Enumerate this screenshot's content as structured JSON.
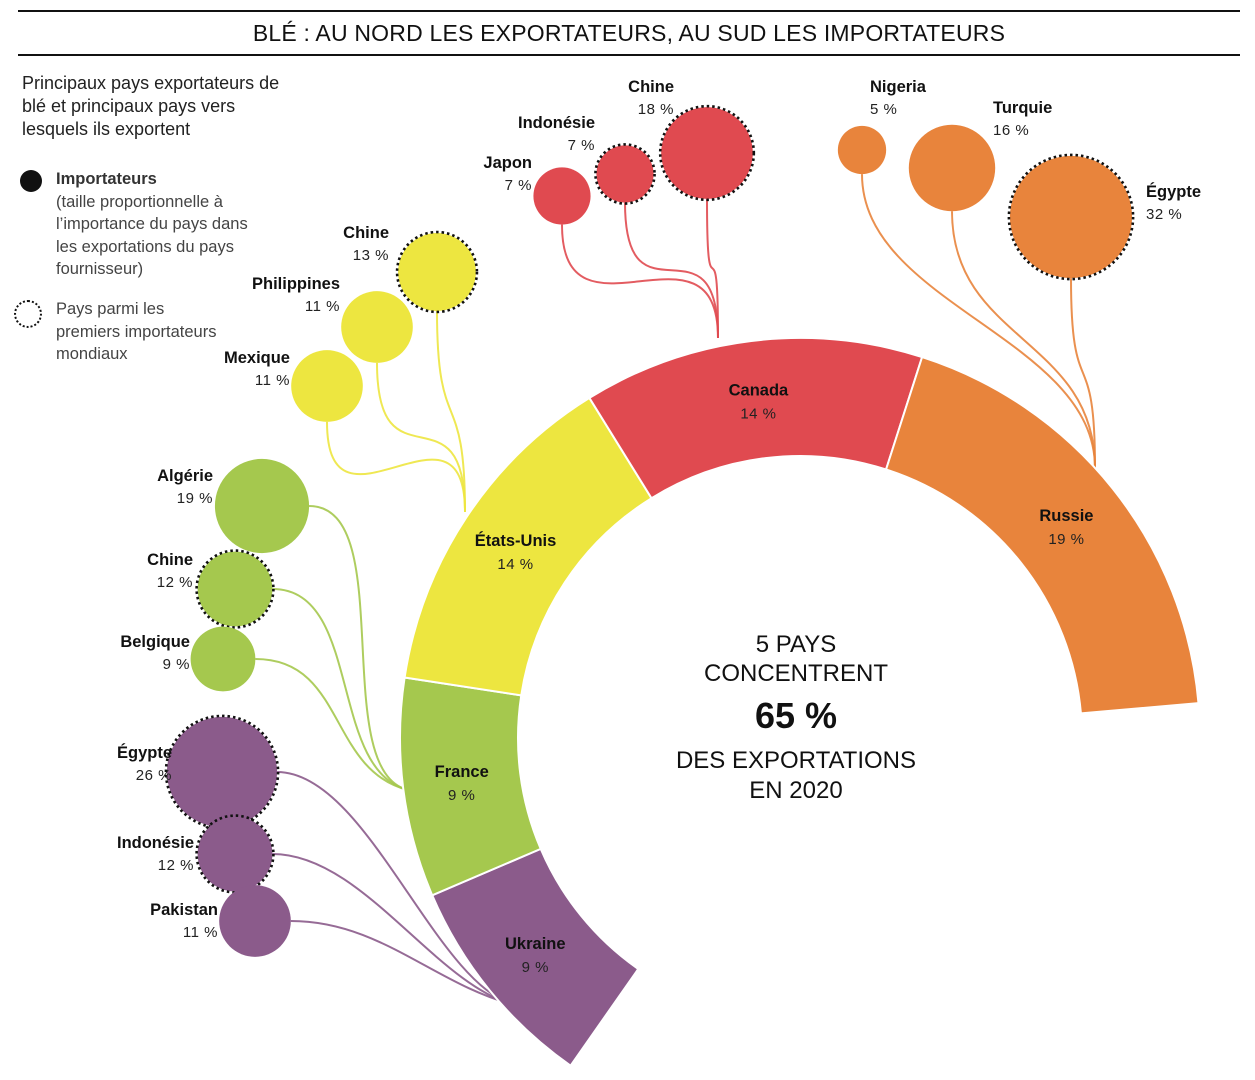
{
  "title": "BLÉ : AU NORD LES EXPORTATEURS, AU SUD LES IMPORTATEURS",
  "subtitle": "Principaux pays exportateurs de blé et principaux pays vers lesquels ils exportent",
  "legend": {
    "importers_title": "Importateurs",
    "importers_desc": "(taille proportionnelle à l’importance du pays dans les exportations du pays fournisseur)",
    "top_importers": "Pays parmi les premiers importateurs mondiaux"
  },
  "center": {
    "line1": "5 PAYS",
    "line2": "CONCENTRENT",
    "big": "65 %",
    "line3": "DES EXPORTATIONS",
    "line4": "EN 2020"
  },
  "colors": {
    "Ukraine": "#8b5b8b",
    "France": "#a5c84e",
    "États-Unis": "#ede640",
    "Canada": "#e04a50",
    "Russie": "#e8843c"
  },
  "chart_data": {
    "type": "pie",
    "title": "BLÉ : AU NORD LES EXPORTATEURS, AU SUD LES IMPORTATEURS",
    "exporters": [
      {
        "name": "Ukraine",
        "value": 9,
        "label": "9 %"
      },
      {
        "name": "France",
        "value": 9,
        "label": "9 %"
      },
      {
        "name": "États-Unis",
        "value": 14,
        "label": "14 %"
      },
      {
        "name": "Canada",
        "value": 14,
        "label": "14 %"
      },
      {
        "name": "Russie",
        "value": 19,
        "label": "19 %"
      }
    ],
    "importers": [
      {
        "exporter": "Ukraine",
        "name": "Égypte",
        "value": 26,
        "label": "26 %",
        "top_importer": true
      },
      {
        "exporter": "Ukraine",
        "name": "Indonésie",
        "value": 12,
        "label": "12 %",
        "top_importer": true
      },
      {
        "exporter": "Ukraine",
        "name": "Pakistan",
        "value": 11,
        "label": "11 %",
        "top_importer": false
      },
      {
        "exporter": "France",
        "name": "Algérie",
        "value": 19,
        "label": "19 %",
        "top_importer": false
      },
      {
        "exporter": "France",
        "name": "Chine",
        "value": 12,
        "label": "12 %",
        "top_importer": true
      },
      {
        "exporter": "France",
        "name": "Belgique",
        "value": 9,
        "label": "9 %",
        "top_importer": false
      },
      {
        "exporter": "États-Unis",
        "name": "Chine",
        "value": 13,
        "label": "13 %",
        "top_importer": true
      },
      {
        "exporter": "États-Unis",
        "name": "Philippines",
        "value": 11,
        "label": "11 %",
        "top_importer": false
      },
      {
        "exporter": "États-Unis",
        "name": "Mexique",
        "value": 11,
        "label": "11 %",
        "top_importer": false
      },
      {
        "exporter": "Canada",
        "name": "Chine",
        "value": 18,
        "label": "18 %",
        "top_importer": true
      },
      {
        "exporter": "Canada",
        "name": "Indonésie",
        "value": 7,
        "label": "7 %",
        "top_importer": true
      },
      {
        "exporter": "Canada",
        "name": "Japon",
        "value": 7,
        "label": "7 %",
        "top_importer": false
      },
      {
        "exporter": "Russie",
        "name": "Égypte",
        "value": 32,
        "label": "32 %",
        "top_importer": true
      },
      {
        "exporter": "Russie",
        "name": "Turquie",
        "value": 16,
        "label": "16 %",
        "top_importer": false
      },
      {
        "exporter": "Russie",
        "name": "Nigeria",
        "value": 5,
        "label": "5 %",
        "top_importer": false
      }
    ]
  }
}
